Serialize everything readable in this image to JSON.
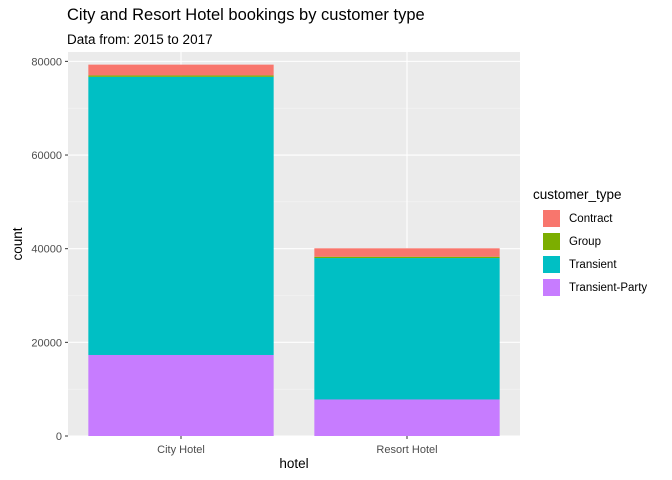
{
  "chart_data": {
    "type": "bar",
    "stacked": true,
    "title": "City and Resort Hotel bookings by customer type",
    "subtitle": "Data from: 2015 to 2017",
    "xlabel": "hotel",
    "ylabel": "count",
    "categories": [
      "City Hotel",
      "Resort Hotel"
    ],
    "ylim": [
      0,
      82000
    ],
    "yticks": [
      0,
      20000,
      40000,
      60000,
      80000
    ],
    "ytick_labels": [
      "0",
      "20000",
      "40000",
      "60000",
      "80000"
    ],
    "legend_title": "customer_type",
    "legend_position": "right",
    "grid": true,
    "series": [
      {
        "name": "Contract",
        "color": "#F8766D",
        "values": [
          2300,
          1800
        ]
      },
      {
        "name": "Group",
        "color": "#7CAE00",
        "values": [
          300,
          280
        ]
      },
      {
        "name": "Transient",
        "color": "#00BFC4",
        "values": [
          59400,
          30200
        ]
      },
      {
        "name": "Transient-Party",
        "color": "#C77CFF",
        "values": [
          17300,
          7800
        ]
      }
    ]
  }
}
